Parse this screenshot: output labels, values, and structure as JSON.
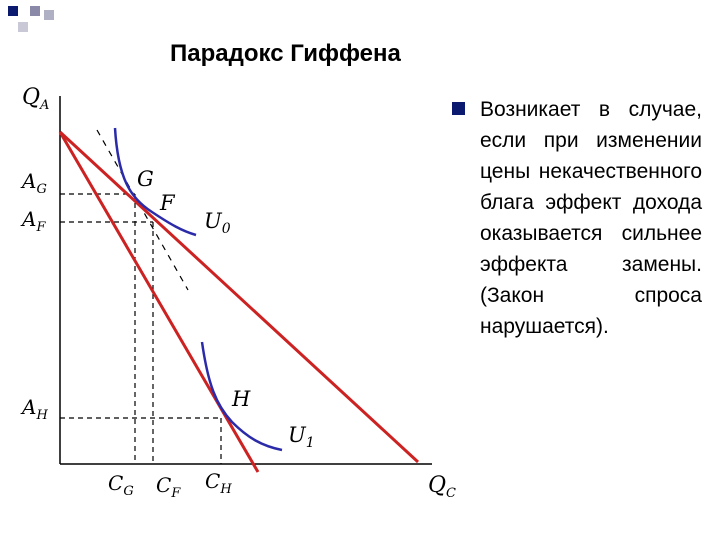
{
  "slide": {
    "title": "Парадокс Гиффена",
    "bullet_text": "Возникает в случае, если при изменении цены некачественного блага эффект дохода оказывается сильнее эффекта замены. (Закон спроса нарушается)."
  },
  "diagram": {
    "y_axis_label": "Q",
    "y_axis_sub": "A",
    "x_axis_label": "Q",
    "x_axis_sub": "C",
    "y_ticks": [
      {
        "main": "A",
        "sub": "G"
      },
      {
        "main": "A",
        "sub": "F"
      },
      {
        "main": "A",
        "sub": "H"
      }
    ],
    "x_ticks": [
      {
        "main": "C",
        "sub": "G"
      },
      {
        "main": "C",
        "sub": "F"
      },
      {
        "main": "C",
        "sub": "H"
      }
    ],
    "points": [
      "G",
      "F",
      "H"
    ],
    "curves": [
      {
        "main": "U",
        "sub": "0"
      },
      {
        "main": "U",
        "sub": "1"
      }
    ]
  },
  "colors": {
    "budget_line": "#cc2222",
    "indifference_curve": "#2b2baa",
    "bullet": "#0b1a6e",
    "corner_squares": "#0b1a6e"
  }
}
